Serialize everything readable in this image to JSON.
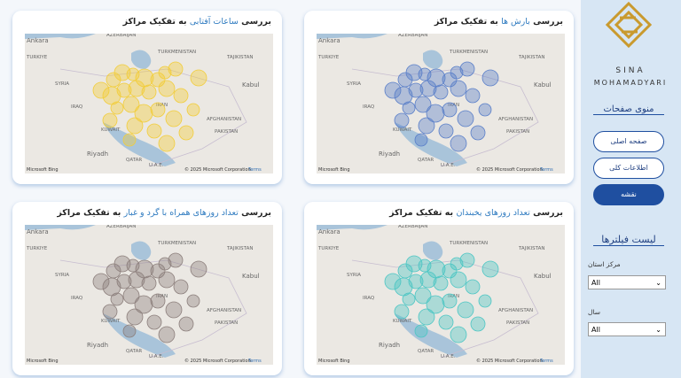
{
  "sidebar": {
    "logo_line1": "SINA",
    "logo_line2": "MOHAMADYARI",
    "menu_title": "منوی صفحات",
    "menu": [
      "صفحه اصلی",
      "اطلاعات کلی",
      "نقشه"
    ],
    "filters_title": "لیست فیلترها",
    "filters": [
      {
        "label": "مرکز استان",
        "value": "All"
      },
      {
        "label": "سال",
        "value": "All"
      }
    ]
  },
  "panels": [
    {
      "title_prefix": "بررسی",
      "title_highlight": "ساعات آفتابی",
      "title_suffix": "به تفکیک مراکز",
      "color": "#f2cd3a"
    },
    {
      "title_prefix": "بررسی",
      "title_highlight": "بارش ها",
      "title_suffix": "به تفکیک مراکز",
      "color": "#5a7fc9"
    },
    {
      "title_prefix": "بررسی",
      "title_highlight": "تعداد روزهای همراه با گرد و غبار",
      "title_suffix": "به تفکیک مراکز",
      "color": "#8c7f7c"
    },
    {
      "title_prefix": "بررسی",
      "title_highlight": "تعداد روزهای یخبندان",
      "title_suffix": "به تفکیک مراکز",
      "color": "#4cc6c4"
    }
  ],
  "map_labels": [
    "Ankara",
    "TURKIYE",
    "AZERBAIJAN",
    "TURKMENISTAN",
    "TAJIKISTAN",
    "SYRIA",
    "IRAQ",
    "IRAN",
    "AFGHANISTAN",
    "Kabul",
    "PAKISTAN",
    "KUWAIT",
    "Riyadh",
    "QATAR",
    "U.A.E."
  ],
  "map_footer": {
    "copyright": "© 2025 Microsoft Corporation",
    "terms": "Terms",
    "brand": "Microsoft Bing"
  }
}
